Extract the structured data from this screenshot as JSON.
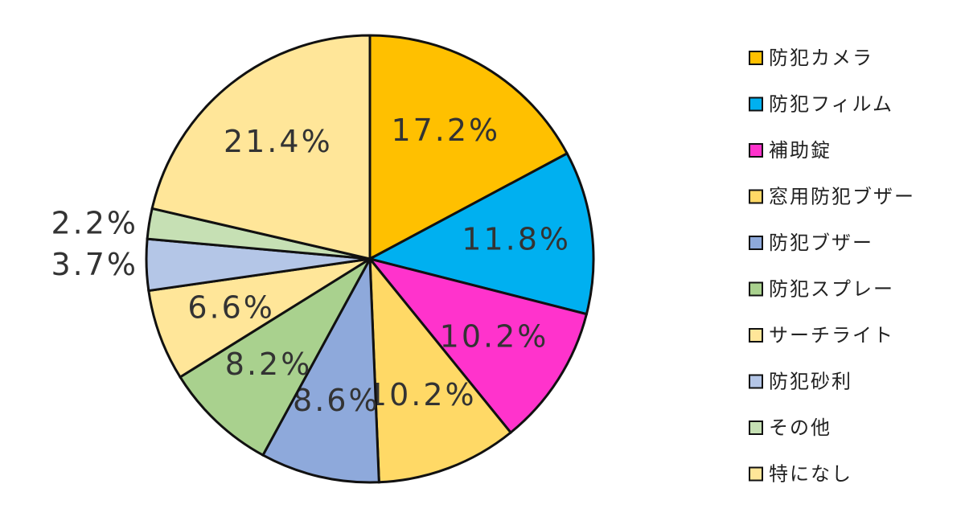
{
  "chart_data": {
    "type": "pie",
    "categories": [
      "防犯カメラ",
      "防犯フィルム",
      "補助錠",
      "窓用防犯ブザー",
      "防犯ブザー",
      "防犯スプレー",
      "サーチライト",
      "防犯砂利",
      "その他",
      "特になし"
    ],
    "values": [
      17.2,
      11.8,
      10.2,
      10.2,
      8.6,
      8.2,
      6.6,
      3.7,
      2.2,
      21.4
    ],
    "value_labels": [
      "17.2%",
      "11.8%",
      "10.2%",
      "10.2%",
      "8.6%",
      "8.2%",
      "6.6%",
      "3.7%",
      "2.2%",
      "21.4%"
    ],
    "colors": [
      "#FFC000",
      "#00B0F0",
      "#FF33CC",
      "#FFD966",
      "#8EA9DB",
      "#A9D18E",
      "#FFE699",
      "#B4C6E7",
      "#C6E0B4",
      "#FFE699"
    ],
    "legend": "right"
  }
}
